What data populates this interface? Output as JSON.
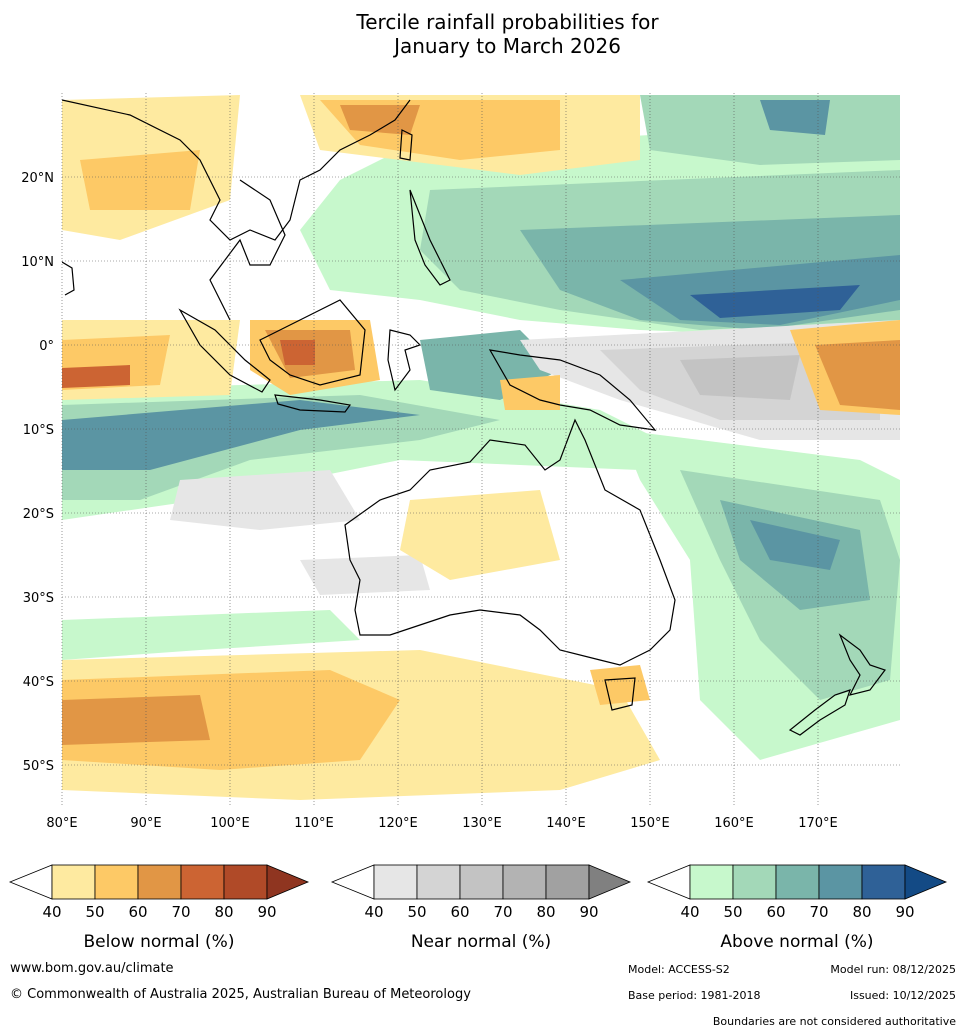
{
  "title": {
    "line1": "Tercile rainfall probabilities for",
    "line2": "January to March 2026"
  },
  "map": {
    "lat_labels": [
      "20°N",
      "10°N",
      "0°",
      "10°S",
      "20°S",
      "30°S",
      "40°S",
      "50°S"
    ],
    "lon_labels": [
      "80°E",
      "90°E",
      "100°E",
      "110°E",
      "120°E",
      "130°E",
      "140°E",
      "150°E",
      "160°E",
      "170°E"
    ],
    "lat_range": [
      -55,
      30
    ],
    "lon_range": [
      80,
      180
    ]
  },
  "legends": [
    {
      "id": "below",
      "title": "Below normal (%)",
      "ticks": [
        "40",
        "50",
        "60",
        "70",
        "80",
        "90"
      ],
      "colors": [
        "#ffffff",
        "#feeaa0",
        "#fdc966",
        "#e19645",
        "#cc6433",
        "#b04a28",
        "#8f3520"
      ]
    },
    {
      "id": "near",
      "title": "Near normal (%)",
      "ticks": [
        "40",
        "50",
        "60",
        "70",
        "80",
        "90"
      ],
      "colors": [
        "#ffffff",
        "#e6e6e6",
        "#d4d4d4",
        "#c3c3c3",
        "#b3b3b3",
        "#a1a1a1",
        "#808080"
      ]
    },
    {
      "id": "above",
      "title": "Above normal (%)",
      "ticks": [
        "40",
        "50",
        "60",
        "70",
        "80",
        "90"
      ],
      "colors": [
        "#ffffff",
        "#c7f8cc",
        "#a3d8b8",
        "#7ab5aa",
        "#5b95a3",
        "#2f6197",
        "#134a85"
      ]
    }
  ],
  "footer": {
    "website": "www.bom.gov.au/climate",
    "copyright": "© Commonwealth of Australia 2025, Australian Bureau of Meteorology",
    "model": "Model: ACCESS-S2",
    "model_run": "Model run: 08/12/2025",
    "base_period": "Base period: 1981-2018",
    "issued": "Issued: 10/12/2025",
    "disclaimer": "Boundaries are not considered authoritative"
  }
}
